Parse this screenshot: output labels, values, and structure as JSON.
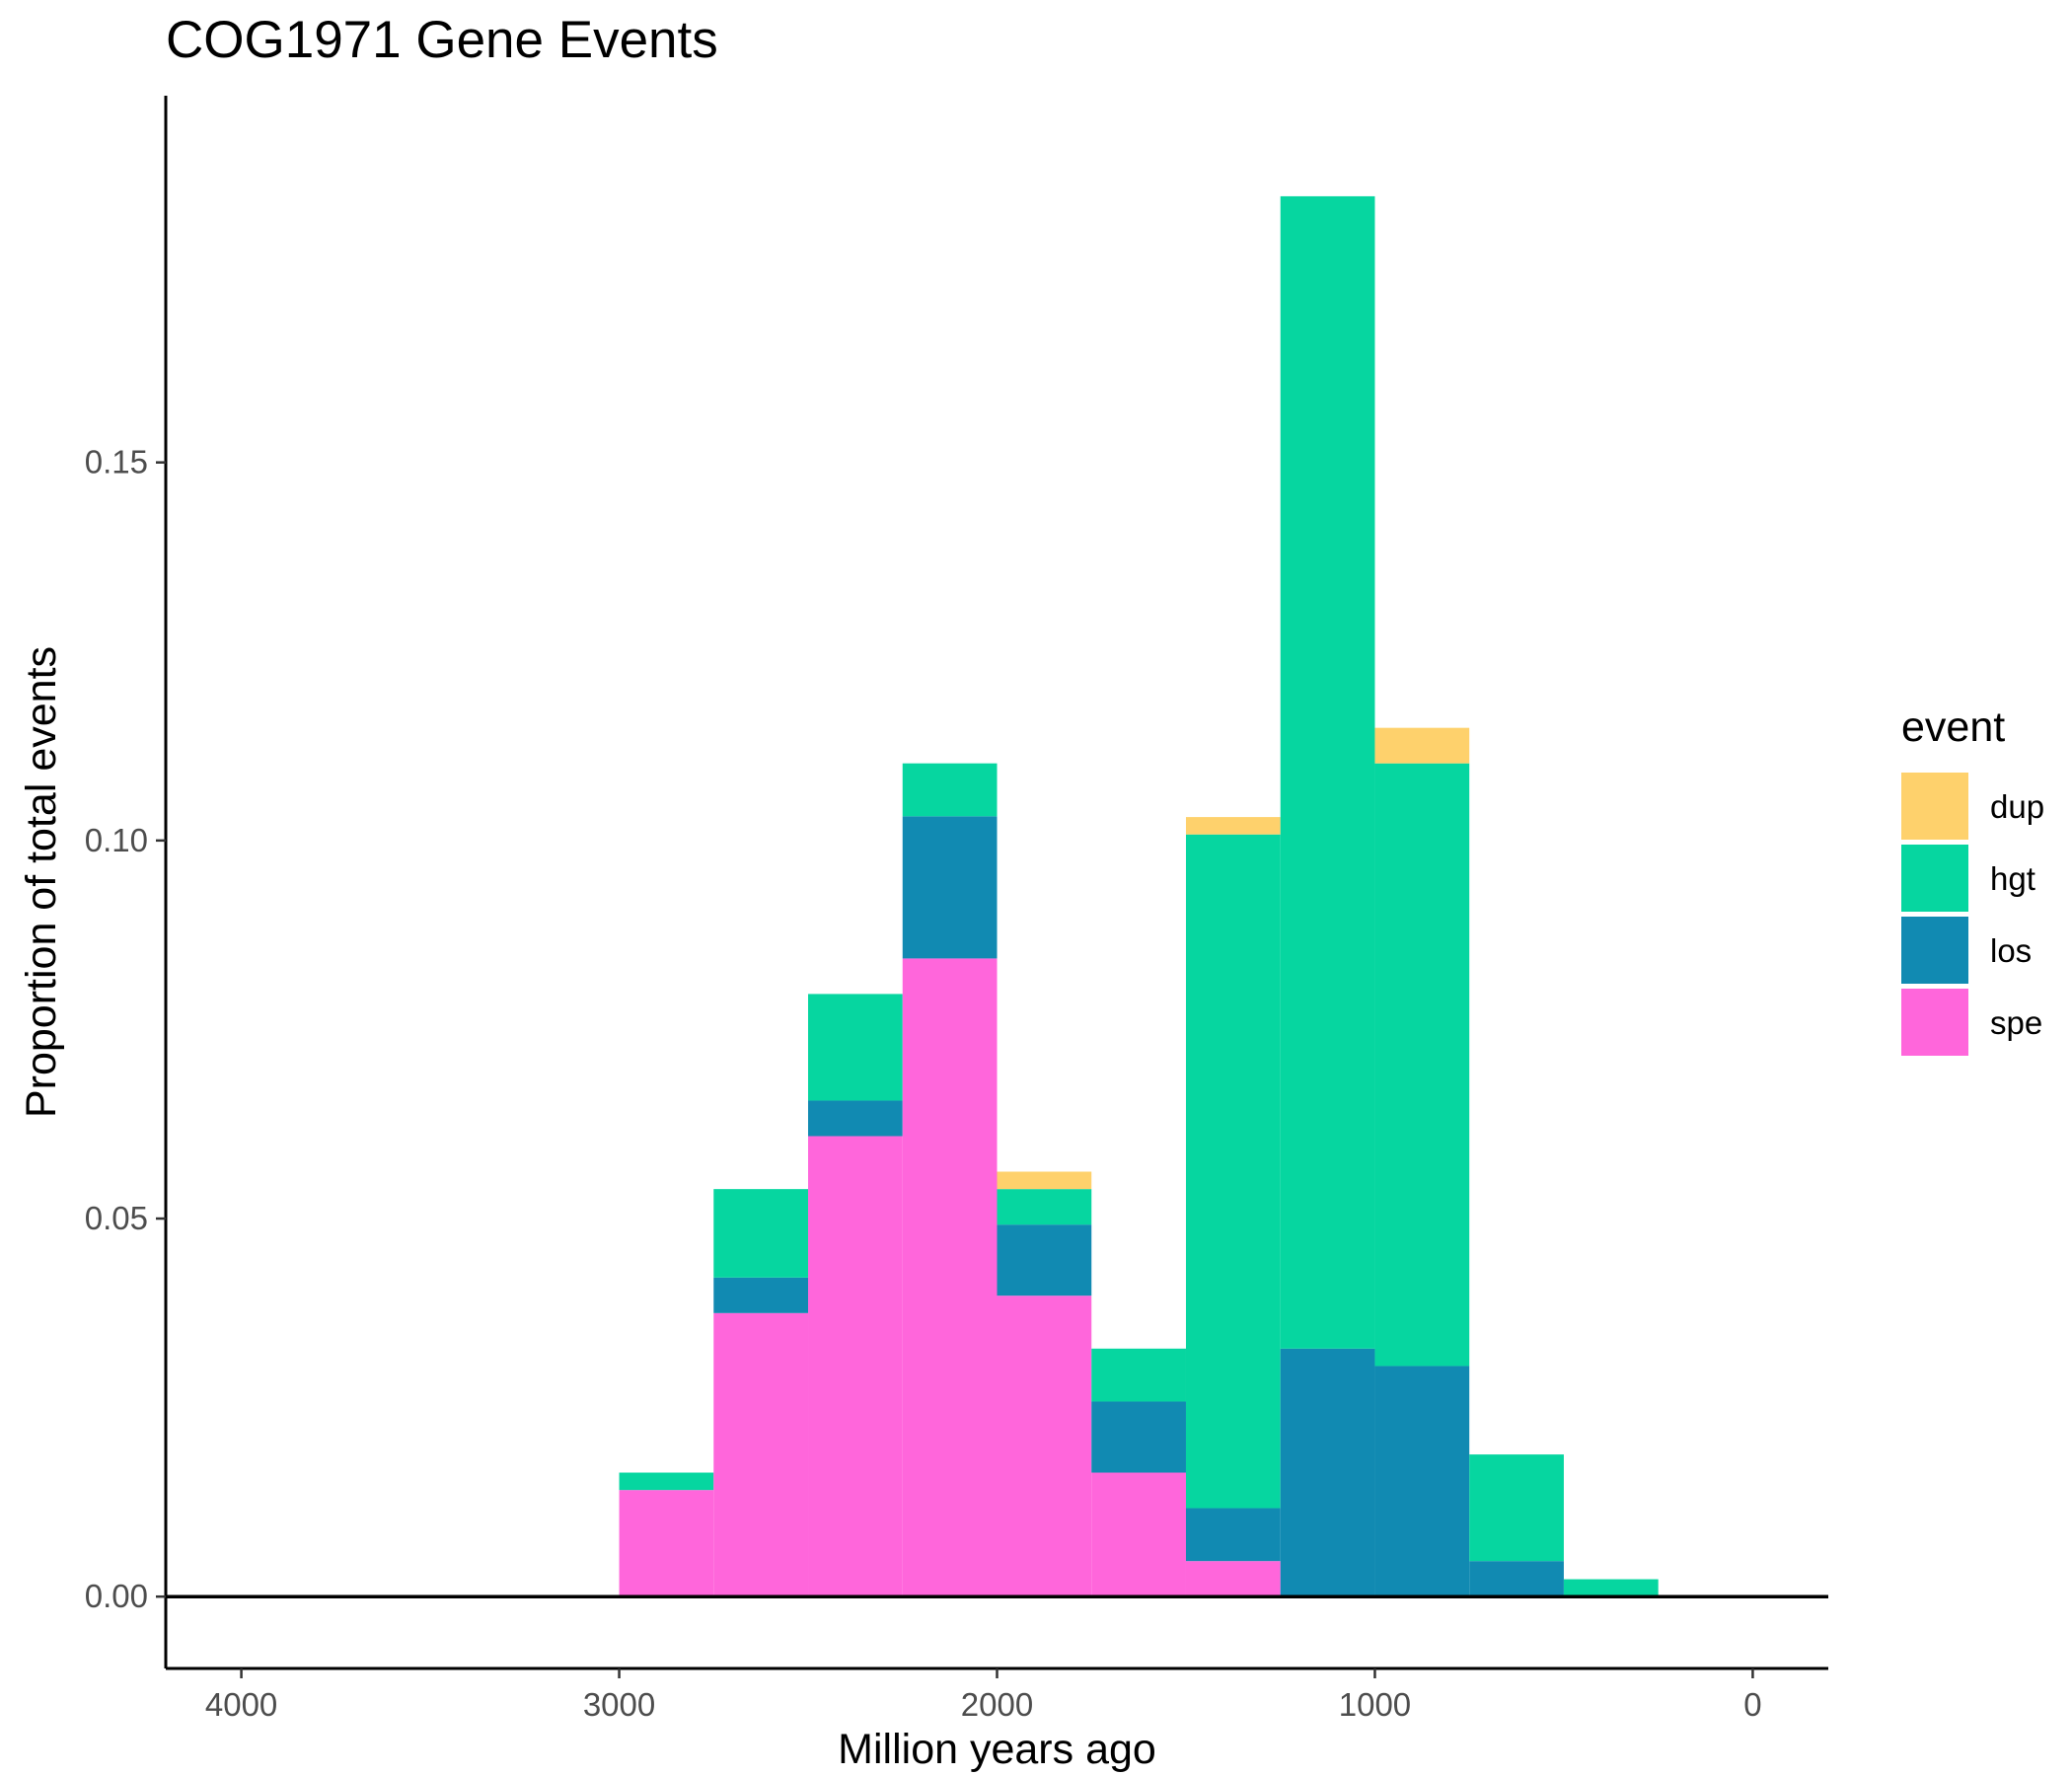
{
  "chart_data": {
    "type": "bar",
    "stacked": true,
    "title": "COG1971 Gene Events",
    "xlabel": "Million years ago",
    "ylabel": "Proportion of total events",
    "x_reversed": true,
    "xlim": [
      4200,
      -200
    ],
    "ylim": [
      -0.0095,
      0.1985
    ],
    "x_ticks": [
      4000,
      3000,
      2000,
      1000,
      0
    ],
    "x_tick_labels": [
      "4000",
      "3000",
      "2000",
      "1000",
      "0"
    ],
    "y_ticks": [
      0,
      0.05,
      0.1,
      0.15
    ],
    "y_tick_labels": [
      "0.00",
      "0.05",
      "0.10",
      "0.15"
    ],
    "bin_width": 250,
    "x": [
      2875,
      2625,
      2375,
      2125,
      1875,
      1625,
      1375,
      1125,
      875,
      625,
      375
    ],
    "stack_order_bottom_to_top": [
      "spe",
      "los",
      "hgt",
      "dup"
    ],
    "series": [
      {
        "name": "dup",
        "color": "#FED16C",
        "values": [
          0,
          0,
          0,
          0,
          0.0023,
          0,
          0.0023,
          0,
          0.0047,
          0,
          0
        ]
      },
      {
        "name": "hgt",
        "color": "#06D6A0",
        "values": [
          0.0023,
          0.0117,
          0.0141,
          0.007,
          0.0047,
          0.007,
          0.0891,
          0.1524,
          0.0797,
          0.0141,
          0.0023
        ]
      },
      {
        "name": "los",
        "color": "#118AB2",
        "values": [
          0,
          0.0047,
          0.0047,
          0.0188,
          0.0094,
          0.0094,
          0.007,
          0.0328,
          0.0305,
          0.0047,
          0
        ]
      },
      {
        "name": "spe",
        "color": "#FF66DB",
        "values": [
          0.0141,
          0.0375,
          0.0609,
          0.0844,
          0.0398,
          0.0164,
          0.0047,
          0,
          0,
          0,
          0
        ]
      }
    ],
    "grid": false,
    "legend": {
      "title": "event",
      "position": "right",
      "items": [
        "dup",
        "hgt",
        "los",
        "spe"
      ]
    }
  }
}
